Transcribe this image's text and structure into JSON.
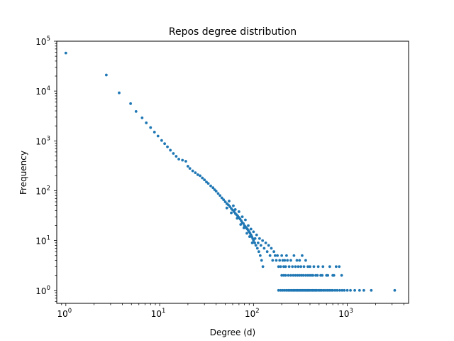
{
  "chart_data": {
    "type": "scatter",
    "title": "Repos degree distribution",
    "xlabel": "Degree (d)",
    "ylabel": "Frequency",
    "xscale": "log",
    "yscale": "log",
    "xlim": [
      0.8,
      4500
    ],
    "ylim": [
      0.55,
      100000
    ],
    "x_ticks": [
      {
        "value": 1,
        "base": "10",
        "exp": "0"
      },
      {
        "value": 10,
        "base": "10",
        "exp": "1"
      },
      {
        "value": 100,
        "base": "10",
        "exp": "2"
      },
      {
        "value": 1000,
        "base": "10",
        "exp": "3"
      }
    ],
    "y_ticks": [
      {
        "value": 1,
        "base": "10",
        "exp": "0"
      },
      {
        "value": 10,
        "base": "10",
        "exp": "1"
      },
      {
        "value": 100,
        "base": "10",
        "exp": "2"
      },
      {
        "value": 1000,
        "base": "10",
        "exp": "3"
      },
      {
        "value": 10000,
        "base": "10",
        "exp": "4"
      },
      {
        "value": 100000,
        "base": "10",
        "exp": "5"
      }
    ],
    "grid": false,
    "legend": "none",
    "color": "#1f77b4",
    "points": [
      [
        1,
        58000
      ],
      [
        2.7,
        21000
      ],
      [
        3.7,
        9200
      ],
      [
        4.9,
        5600
      ],
      [
        5.6,
        3900
      ],
      [
        6.5,
        2900
      ],
      [
        7.2,
        2300
      ],
      [
        8,
        1850
      ],
      [
        8.8,
        1500
      ],
      [
        9.6,
        1250
      ],
      [
        10.5,
        1020
      ],
      [
        11.3,
        880
      ],
      [
        12.1,
        760
      ],
      [
        13,
        650
      ],
      [
        14,
        560
      ],
      [
        15,
        490
      ],
      [
        16,
        430
      ],
      [
        17.5,
        410
      ],
      [
        19,
        390
      ],
      [
        20,
        310
      ],
      [
        21,
        280
      ],
      [
        22.5,
        250
      ],
      [
        24,
        230
      ],
      [
        25.5,
        210
      ],
      [
        27,
        200
      ],
      [
        28.5,
        180
      ],
      [
        30,
        165
      ],
      [
        31.5,
        150
      ],
      [
        33,
        140
      ],
      [
        35,
        125
      ],
      [
        37,
        115
      ],
      [
        38.5,
        105
      ],
      [
        40,
        98
      ],
      [
        42,
        88
      ],
      [
        44,
        80
      ],
      [
        46,
        72
      ],
      [
        48,
        66
      ],
      [
        50,
        60
      ],
      [
        52,
        55
      ],
      [
        54,
        52
      ],
      [
        56,
        48
      ],
      [
        58,
        44
      ],
      [
        60,
        41
      ],
      [
        62,
        38
      ],
      [
        64,
        35
      ],
      [
        66,
        33
      ],
      [
        68,
        31
      ],
      [
        70,
        29
      ],
      [
        72,
        27
      ],
      [
        74,
        25
      ],
      [
        76,
        23
      ],
      [
        78,
        22
      ],
      [
        80,
        20
      ],
      [
        82,
        19
      ],
      [
        84,
        18
      ],
      [
        86,
        17
      ],
      [
        88,
        16
      ],
      [
        90,
        15
      ],
      [
        92,
        14
      ],
      [
        94,
        13
      ],
      [
        96,
        12
      ],
      [
        98,
        11
      ],
      [
        100,
        10
      ],
      [
        103,
        9
      ],
      [
        106,
        8
      ],
      [
        110,
        7
      ],
      [
        114,
        6
      ],
      [
        118,
        5
      ],
      [
        122,
        4
      ],
      [
        126,
        3
      ],
      [
        52,
        45
      ],
      [
        55,
        62
      ],
      [
        58,
        36
      ],
      [
        61,
        50
      ],
      [
        64,
        42
      ],
      [
        67,
        28
      ],
      [
        70,
        38
      ],
      [
        73,
        21
      ],
      [
        76,
        30
      ],
      [
        79,
        18
      ],
      [
        82,
        26
      ],
      [
        85,
        14
      ],
      [
        88,
        20
      ],
      [
        91,
        12
      ],
      [
        94,
        17
      ],
      [
        97,
        9
      ],
      [
        100,
        15
      ],
      [
        104,
        11
      ],
      [
        108,
        13
      ],
      [
        112,
        9
      ],
      [
        116,
        11
      ],
      [
        120,
        8
      ],
      [
        125,
        10
      ],
      [
        130,
        7
      ],
      [
        135,
        9
      ],
      [
        140,
        6
      ],
      [
        145,
        8
      ],
      [
        150,
        5
      ],
      [
        155,
        7
      ],
      [
        160,
        4
      ],
      [
        165,
        6
      ],
      [
        170,
        5
      ],
      [
        175,
        4
      ],
      [
        180,
        5
      ],
      [
        185,
        3
      ],
      [
        190,
        4
      ],
      [
        195,
        3
      ],
      [
        200,
        5
      ],
      [
        205,
        4
      ],
      [
        210,
        3
      ],
      [
        215,
        4
      ],
      [
        220,
        3
      ],
      [
        225,
        5
      ],
      [
        230,
        4
      ],
      [
        240,
        3
      ],
      [
        250,
        4
      ],
      [
        260,
        3
      ],
      [
        270,
        5
      ],
      [
        280,
        3
      ],
      [
        290,
        4
      ],
      [
        300,
        3
      ],
      [
        310,
        4
      ],
      [
        320,
        3
      ],
      [
        330,
        5
      ],
      [
        345,
        3
      ],
      [
        360,
        4
      ],
      [
        380,
        3
      ],
      [
        400,
        3
      ],
      [
        420,
        2
      ],
      [
        440,
        3
      ],
      [
        460,
        2
      ],
      [
        490,
        3
      ],
      [
        520,
        2
      ],
      [
        550,
        3
      ],
      [
        600,
        2
      ],
      [
        650,
        3
      ],
      [
        700,
        2
      ],
      [
        760,
        3
      ],
      [
        820,
        3
      ],
      [
        870,
        2
      ],
      [
        200,
        2
      ],
      [
        210,
        2
      ],
      [
        220,
        2
      ],
      [
        235,
        2
      ],
      [
        250,
        2
      ],
      [
        265,
        2
      ],
      [
        280,
        2
      ],
      [
        295,
        2
      ],
      [
        310,
        2
      ],
      [
        325,
        2
      ],
      [
        340,
        2
      ],
      [
        360,
        2
      ],
      [
        380,
        2
      ],
      [
        400,
        2
      ],
      [
        430,
        2
      ],
      [
        480,
        2
      ],
      [
        540,
        2
      ],
      [
        620,
        2
      ],
      [
        720,
        2
      ],
      [
        185,
        1
      ],
      [
        195,
        1
      ],
      [
        205,
        1
      ],
      [
        215,
        1
      ],
      [
        225,
        1
      ],
      [
        235,
        1
      ],
      [
        245,
        1
      ],
      [
        255,
        1
      ],
      [
        265,
        1
      ],
      [
        275,
        1
      ],
      [
        285,
        1
      ],
      [
        295,
        1
      ],
      [
        305,
        1
      ],
      [
        315,
        1
      ],
      [
        325,
        1
      ],
      [
        335,
        1
      ],
      [
        345,
        1
      ],
      [
        355,
        1
      ],
      [
        365,
        1
      ],
      [
        375,
        1
      ],
      [
        385,
        1
      ],
      [
        395,
        1
      ],
      [
        410,
        1
      ],
      [
        425,
        1
      ],
      [
        440,
        1
      ],
      [
        455,
        1
      ],
      [
        470,
        1
      ],
      [
        490,
        1
      ],
      [
        510,
        1
      ],
      [
        530,
        1
      ],
      [
        555,
        1
      ],
      [
        580,
        1
      ],
      [
        610,
        1
      ],
      [
        640,
        1
      ],
      [
        670,
        1
      ],
      [
        700,
        1
      ],
      [
        740,
        1
      ],
      [
        780,
        1
      ],
      [
        830,
        1
      ],
      [
        880,
        1
      ],
      [
        930,
        1
      ],
      [
        1000,
        1
      ],
      [
        1080,
        1
      ],
      [
        1200,
        1
      ],
      [
        1350,
        1
      ],
      [
        1500,
        1
      ],
      [
        1800,
        1
      ],
      [
        3200,
        1
      ]
    ]
  }
}
